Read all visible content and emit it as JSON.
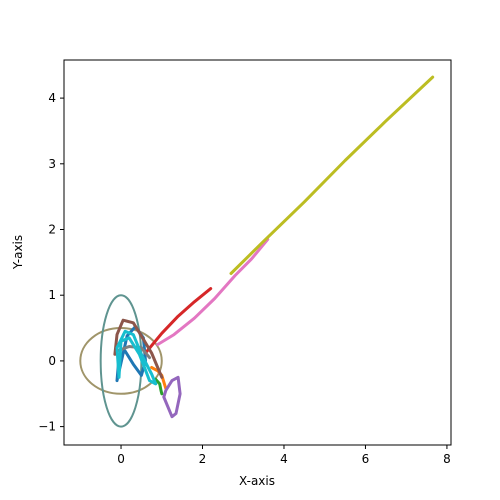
{
  "chart_data": {
    "type": "line",
    "title": "",
    "xlabel": "X-axis",
    "ylabel": "Y-axis",
    "xlim": [
      -1.4,
      8.1
    ],
    "ylim": [
      -1.28,
      4.58
    ],
    "xticks": [
      0,
      2,
      4,
      6,
      8
    ],
    "yticks": [
      -1,
      0,
      1,
      2,
      3,
      4
    ],
    "grid": false,
    "legend": "none",
    "series": [
      {
        "color": "#1f77b4",
        "points": [
          [
            -0.1,
            -0.3
          ],
          [
            0.15,
            0.38
          ],
          [
            0.35,
            0.52
          ],
          [
            0.55,
            0.35
          ],
          [
            0.6,
            0.0
          ],
          [
            0.5,
            -0.22
          ],
          [
            0.3,
            -0.05
          ],
          [
            0.1,
            0.15
          ],
          [
            -0.05,
            0.05
          ],
          [
            -0.1,
            -0.3
          ]
        ]
      },
      {
        "color": "#ff7f0e",
        "points": [
          [
            0.75,
            -0.1
          ],
          [
            0.9,
            -0.15
          ],
          [
            1.0,
            -0.22
          ],
          [
            1.05,
            -0.32
          ],
          [
            1.1,
            -0.42
          ]
        ]
      },
      {
        "color": "#2ca02c",
        "points": [
          [
            0.85,
            -0.28
          ],
          [
            0.95,
            -0.35
          ],
          [
            0.98,
            -0.45
          ],
          [
            1.0,
            -0.5
          ]
        ]
      },
      {
        "color": "#d62728",
        "points": [
          [
            0.6,
            0.12
          ],
          [
            1.0,
            0.42
          ],
          [
            1.4,
            0.68
          ],
          [
            1.8,
            0.9
          ],
          [
            2.2,
            1.1
          ]
        ]
      },
      {
        "color": "#9467bd",
        "points": [
          [
            1.1,
            -0.45
          ],
          [
            1.25,
            -0.3
          ],
          [
            1.4,
            -0.25
          ],
          [
            1.45,
            -0.5
          ],
          [
            1.35,
            -0.8
          ],
          [
            1.25,
            -0.85
          ],
          [
            1.05,
            -0.55
          ],
          [
            1.1,
            -0.45
          ]
        ]
      },
      {
        "color": "#8c564b",
        "points": [
          [
            -0.15,
            0.1
          ],
          [
            -0.1,
            0.4
          ],
          [
            0.05,
            0.62
          ],
          [
            0.3,
            0.58
          ],
          [
            0.5,
            0.38
          ],
          [
            0.75,
            0.12
          ],
          [
            0.9,
            -0.1
          ],
          [
            1.0,
            -0.25
          ]
        ]
      },
      {
        "color": "#e377c2",
        "points": [
          [
            0.9,
            0.25
          ],
          [
            1.3,
            0.4
          ],
          [
            1.8,
            0.65
          ],
          [
            2.3,
            0.95
          ],
          [
            2.8,
            1.3
          ],
          [
            3.2,
            1.55
          ],
          [
            3.6,
            1.85
          ]
        ]
      },
      {
        "color": "#7f7f7f",
        "points": [
          [
            -0.1,
            0.15
          ],
          [
            0.2,
            0.22
          ],
          [
            0.5,
            0.2
          ],
          [
            0.7,
            0.05
          ]
        ]
      },
      {
        "color": "#bcbd22",
        "points": [
          [
            2.7,
            1.33
          ],
          [
            3.5,
            1.82
          ],
          [
            4.5,
            2.42
          ],
          [
            5.5,
            3.05
          ],
          [
            6.5,
            3.65
          ],
          [
            7.65,
            4.32
          ]
        ]
      },
      {
        "color": "#17becf",
        "points": [
          [
            -0.05,
            -0.25
          ],
          [
            -0.1,
            0.2
          ],
          [
            0.1,
            0.45
          ],
          [
            0.3,
            0.4
          ],
          [
            0.5,
            0.1
          ],
          [
            0.75,
            -0.2
          ],
          [
            0.85,
            -0.35
          ],
          [
            0.7,
            -0.3
          ],
          [
            0.45,
            0.1
          ],
          [
            0.2,
            0.35
          ],
          [
            0.0,
            0.3
          ],
          [
            -0.05,
            -0.25
          ]
        ]
      }
    ],
    "ellipses": [
      {
        "color": "#a0956a",
        "cx": 0.0,
        "cy": 0.0,
        "rx": 1.0,
        "ry": 0.5
      },
      {
        "color": "#5f9490",
        "cx": 0.0,
        "cy": 0.0,
        "rx": 0.5,
        "ry": 1.0
      }
    ]
  }
}
